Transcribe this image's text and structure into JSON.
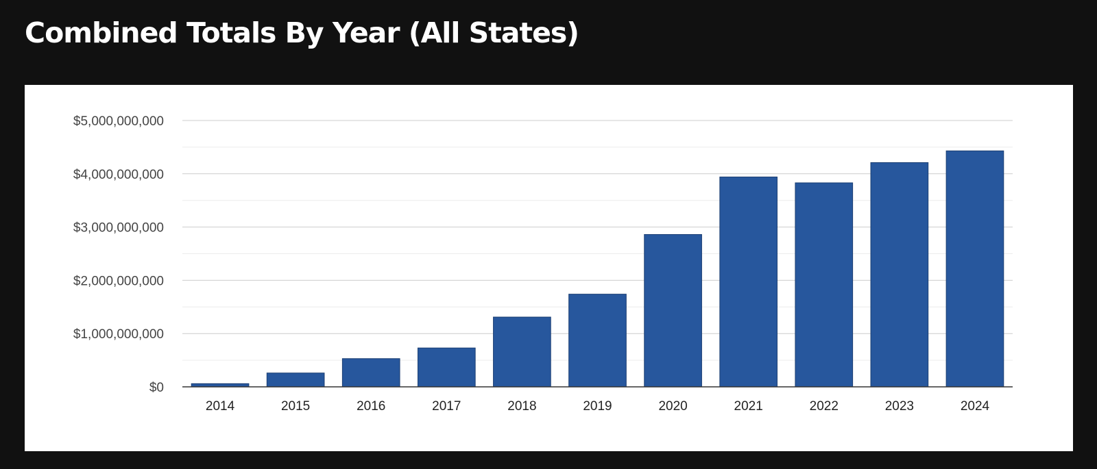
{
  "title": "Combined Totals By Year (All States)",
  "colors": {
    "page_background": "#111111",
    "card_background": "#ffffff",
    "bar": "#27579d",
    "bar_border": "#1c3f73",
    "major_grid": "#cccccc",
    "minor_grid": "#ececec",
    "axis": "#333333"
  },
  "chart_data": {
    "type": "bar",
    "title": "",
    "xlabel": "",
    "ylabel": "",
    "categories": [
      "2014",
      "2015",
      "2016",
      "2017",
      "2018",
      "2019",
      "2020",
      "2021",
      "2022",
      "2023",
      "2024"
    ],
    "values": [
      60000000,
      260000000,
      530000000,
      730000000,
      1310000000,
      1740000000,
      2860000000,
      3940000000,
      3830000000,
      4210000000,
      4430000000
    ],
    "ylim": [
      0,
      5000000000
    ],
    "y_ticks": [
      0,
      1000000000,
      2000000000,
      3000000000,
      4000000000,
      5000000000
    ],
    "y_tick_labels": [
      "$0",
      "$1,000,000,000",
      "$2,000,000,000",
      "$3,000,000,000",
      "$4,000,000,000",
      "$5,000,000,000"
    ],
    "grid": true,
    "minor_grid": true,
    "legend": "none"
  }
}
